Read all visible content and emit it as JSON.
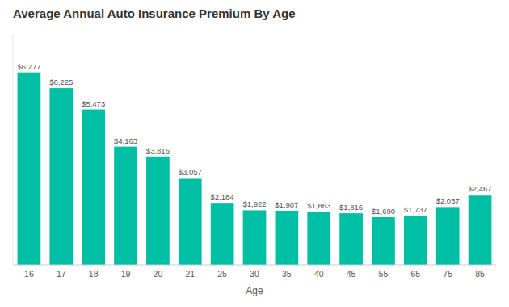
{
  "chart_data": {
    "type": "bar",
    "title": "Average Annual Auto Insurance Premium By Age",
    "xlabel": "Age",
    "categories": [
      "16",
      "17",
      "18",
      "19",
      "20",
      "21",
      "25",
      "30",
      "35",
      "40",
      "45",
      "55",
      "65",
      "75",
      "85"
    ],
    "values": [
      6777,
      6225,
      5473,
      4163,
      3816,
      3057,
      2184,
      1922,
      1907,
      1863,
      1816,
      1690,
      1737,
      2037,
      2467
    ],
    "value_labels": [
      "$6,777",
      "$6,225",
      "$5,473",
      "$4,163",
      "$3,816",
      "$3,057",
      "$2,184",
      "$1,922",
      "$1,907",
      "$1,863",
      "$1,816",
      "$1,690",
      "$1,737",
      "$2,037",
      "$2,467"
    ],
    "color": "#00BFA5",
    "ylim": [
      0,
      8132.4
    ],
    "data_labels": true,
    "tick_labels": "x",
    "grid": false
  }
}
